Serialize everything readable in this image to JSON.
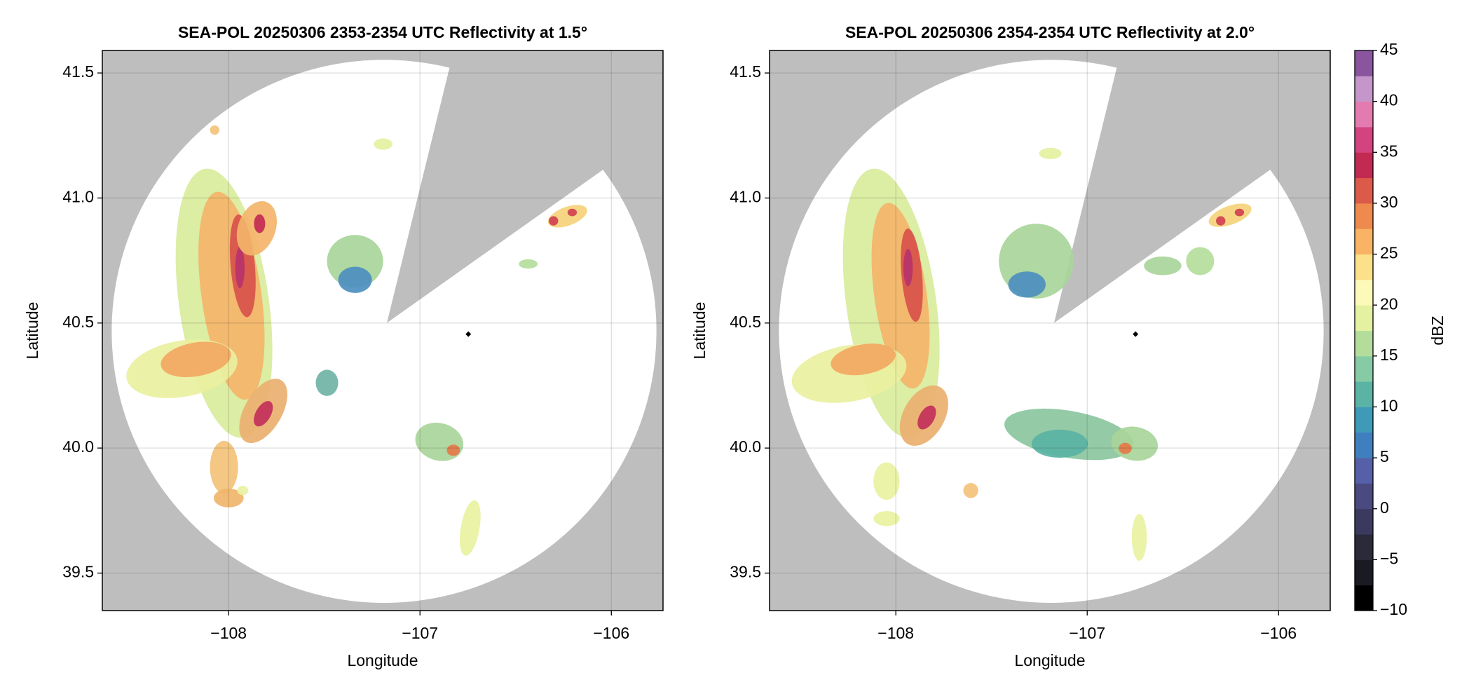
{
  "chart_data": [
    {
      "type": "radar-map",
      "title": "SEA-POL 20250306 2353-2354 UTC Reflectivity at 1.5°",
      "xlabel": "Longitude",
      "ylabel": "Latitude",
      "xlim": [
        -108.66,
        -105.73
      ],
      "ylim": [
        39.35,
        41.59
      ],
      "xticks": [
        {
          "value": -108,
          "label": "−108"
        },
        {
          "value": -107,
          "label": "−107"
        },
        {
          "value": -106,
          "label": "−106"
        }
      ],
      "yticks": [
        39.5,
        {
          "value": 40,
          "label": "40.0"
        },
        40.5,
        {
          "value": 41,
          "label": "41.0"
        },
        41.5
      ],
      "grid": true
    },
    {
      "type": "radar-map",
      "title": "SEA-POL 20250306 2354-2354 UTC Reflectivity at 2.0°",
      "xlabel": "Longitude",
      "ylabel": "Latitude",
      "xlim": [
        -108.66,
        -105.73
      ],
      "ylim": [
        39.35,
        41.59
      ],
      "xticks": [
        {
          "value": -108,
          "label": "−108"
        },
        {
          "value": -107,
          "label": "−107"
        },
        {
          "value": -106,
          "label": "−106"
        }
      ],
      "yticks": [
        39.5,
        {
          "value": 40,
          "label": "40.0"
        },
        40.5,
        {
          "value": 41,
          "label": "41.0"
        },
        41.5
      ],
      "grid": true,
      "colorbar": {
        "label": "dBZ",
        "clim": [
          -10,
          45
        ],
        "ticks": [
          {
            "value": -10,
            "label": "−10"
          },
          {
            "value": -5,
            "label": "−5"
          },
          0,
          5,
          10,
          15,
          20,
          25,
          30,
          35,
          40,
          45
        ],
        "colors": [
          "#000000",
          "#1a1a22",
          "#2a2a3a",
          "#3b3a5e",
          "#4a4a80",
          "#5560a8",
          "#3f7fbf",
          "#3f9ab8",
          "#5ab3a4",
          "#86cba3",
          "#b4dd9c",
          "#e3f1a0",
          "#fdf9b8",
          "#fde08a",
          "#f8b464",
          "#ef8a4e",
          "#dc5a4a",
          "#c22a52",
          "#d2437f",
          "#e37bb0",
          "#c496c9",
          "#8a559e"
        ]
      }
    }
  ]
}
